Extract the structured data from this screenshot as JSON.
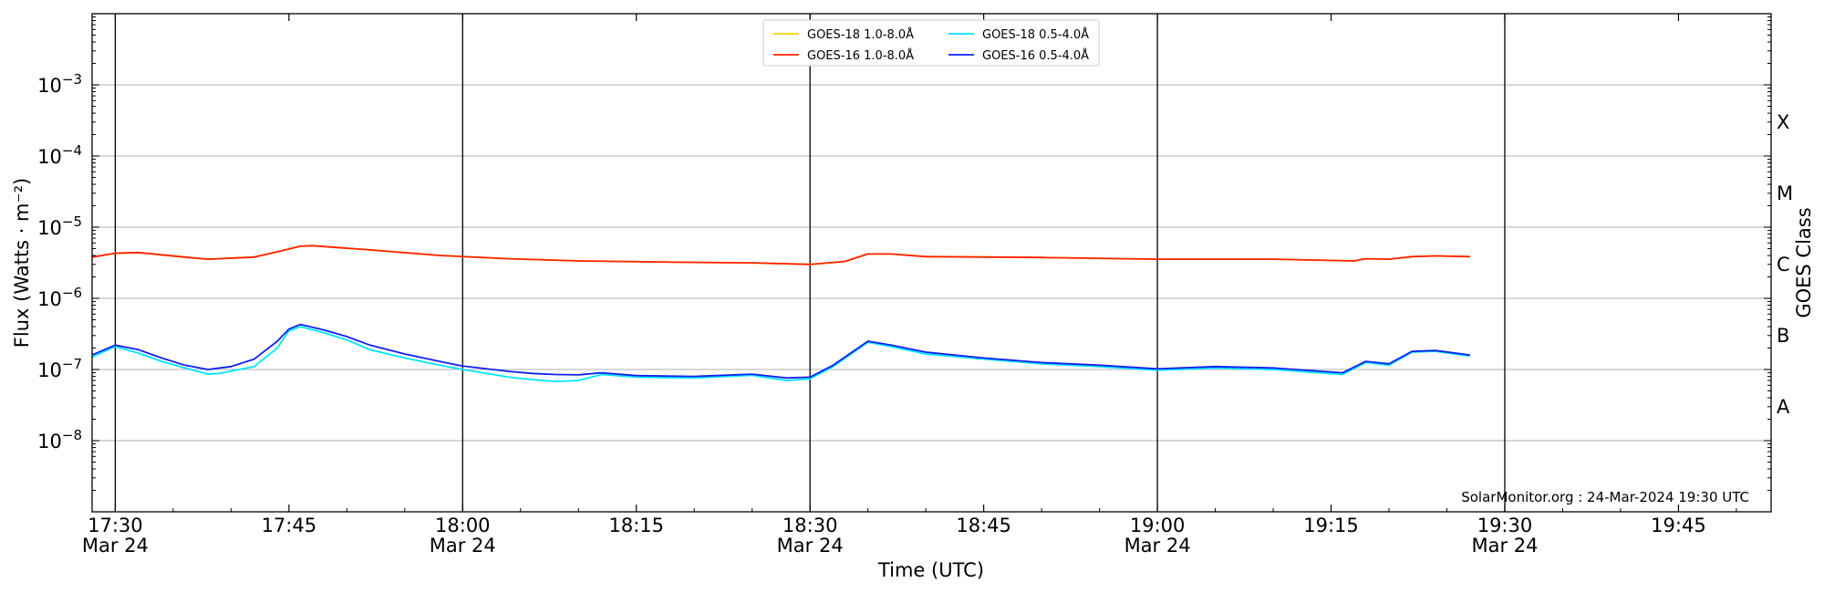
{
  "chart_data": {
    "type": "line",
    "ylabel": "Flux (Watts · m⁻²)",
    "xlabel": "Time (UTC)",
    "right_label": "GOES Class",
    "y_scale": "log",
    "ylim": [
      1e-09,
      0.01
    ],
    "xlim": [
      "17:28",
      "19:53"
    ],
    "grid": "horizontal at each decade",
    "legend_placement": "top-center",
    "annotation": "SolarMonitor.org : 24-Mar-2024 19:30 UTC",
    "y_ticks": [
      {
        "value": 1e-08,
        "base": "10",
        "exp": "−8"
      },
      {
        "value": 1e-07,
        "base": "10",
        "exp": "−7"
      },
      {
        "value": 1e-06,
        "base": "10",
        "exp": "−6"
      },
      {
        "value": 1e-05,
        "base": "10",
        "exp": "−5"
      },
      {
        "value": 0.0001,
        "base": "10",
        "exp": "−4"
      },
      {
        "value": 0.001,
        "base": "10",
        "exp": "−3"
      }
    ],
    "x_ticks": [
      {
        "time": "17:30",
        "label": "17:30",
        "sub": "Mar 24"
      },
      {
        "time": "17:45",
        "label": "17:45",
        "sub": ""
      },
      {
        "time": "18:00",
        "label": "18:00",
        "sub": "Mar 24"
      },
      {
        "time": "18:15",
        "label": "18:15",
        "sub": ""
      },
      {
        "time": "18:30",
        "label": "18:30",
        "sub": "Mar 24"
      },
      {
        "time": "18:45",
        "label": "18:45",
        "sub": ""
      },
      {
        "time": "19:00",
        "label": "19:00",
        "sub": "Mar 24"
      },
      {
        "time": "19:15",
        "label": "19:15",
        "sub": ""
      },
      {
        "time": "19:30",
        "label": "19:30",
        "sub": "Mar 24"
      },
      {
        "time": "19:45",
        "label": "19:45",
        "sub": ""
      }
    ],
    "vertical_lines": [
      "17:30",
      "18:00",
      "18:30",
      "19:00",
      "19:30"
    ],
    "goes_classes": [
      {
        "label": "A",
        "value": 3e-08
      },
      {
        "label": "B",
        "value": 3e-07
      },
      {
        "label": "C",
        "value": 3e-06
      },
      {
        "label": "M",
        "value": 3e-05
      },
      {
        "label": "X",
        "value": 0.0003
      }
    ],
    "series": [
      {
        "name": "GOES-18 1.0-8.0Å",
        "color": "#ffd000",
        "points": [
          [
            "17:28",
            3.8e-06
          ],
          [
            "17:30",
            4.3e-06
          ],
          [
            "17:32",
            4.4e-06
          ],
          [
            "17:36",
            3.8e-06
          ],
          [
            "17:38",
            3.55e-06
          ],
          [
            "17:42",
            3.8e-06
          ],
          [
            "17:44",
            4.5e-06
          ],
          [
            "17:46",
            5.4e-06
          ],
          [
            "17:47",
            5.5e-06
          ],
          [
            "17:52",
            4.8e-06
          ],
          [
            "17:58",
            4e-06
          ],
          [
            "18:04",
            3.6e-06
          ],
          [
            "18:10",
            3.35e-06
          ],
          [
            "18:20",
            3.2e-06
          ],
          [
            "18:25",
            3.15e-06
          ],
          [
            "18:30",
            3e-06
          ],
          [
            "18:33",
            3.3e-06
          ],
          [
            "18:35",
            4.2e-06
          ],
          [
            "18:37",
            4.2e-06
          ],
          [
            "18:40",
            3.85e-06
          ],
          [
            "18:50",
            3.75e-06
          ],
          [
            "19:00",
            3.55e-06
          ],
          [
            "19:10",
            3.55e-06
          ],
          [
            "19:17",
            3.35e-06
          ],
          [
            "19:18",
            3.6e-06
          ],
          [
            "19:20",
            3.55e-06
          ],
          [
            "19:22",
            3.85e-06
          ],
          [
            "19:24",
            3.95e-06
          ],
          [
            "19:27",
            3.85e-06
          ]
        ]
      },
      {
        "name": "GOES-16 1.0-8.0Å",
        "color": "#ff2200",
        "points": [
          [
            "17:28",
            3.8e-06
          ],
          [
            "17:30",
            4.3e-06
          ],
          [
            "17:32",
            4.4e-06
          ],
          [
            "17:36",
            3.8e-06
          ],
          [
            "17:38",
            3.55e-06
          ],
          [
            "17:42",
            3.8e-06
          ],
          [
            "17:44",
            4.5e-06
          ],
          [
            "17:46",
            5.4e-06
          ],
          [
            "17:47",
            5.5e-06
          ],
          [
            "17:52",
            4.8e-06
          ],
          [
            "17:58",
            4e-06
          ],
          [
            "18:04",
            3.6e-06
          ],
          [
            "18:10",
            3.35e-06
          ],
          [
            "18:20",
            3.2e-06
          ],
          [
            "18:25",
            3.15e-06
          ],
          [
            "18:30",
            3e-06
          ],
          [
            "18:33",
            3.3e-06
          ],
          [
            "18:35",
            4.2e-06
          ],
          [
            "18:37",
            4.2e-06
          ],
          [
            "18:40",
            3.85e-06
          ],
          [
            "18:50",
            3.75e-06
          ],
          [
            "19:00",
            3.55e-06
          ],
          [
            "19:10",
            3.55e-06
          ],
          [
            "19:17",
            3.35e-06
          ],
          [
            "19:18",
            3.6e-06
          ],
          [
            "19:20",
            3.55e-06
          ],
          [
            "19:22",
            3.85e-06
          ],
          [
            "19:24",
            3.95e-06
          ],
          [
            "19:27",
            3.85e-06
          ]
        ]
      },
      {
        "name": "GOES-18 0.5-4.0Å",
        "color": "#00e5ff",
        "points": [
          [
            "17:28",
            1.5e-07
          ],
          [
            "17:30",
            2.1e-07
          ],
          [
            "17:32",
            1.7e-07
          ],
          [
            "17:34",
            1.3e-07
          ],
          [
            "17:36",
            1.05e-07
          ],
          [
            "17:38",
            8.6e-08
          ],
          [
            "17:39",
            8.8e-08
          ],
          [
            "17:42",
            1.1e-07
          ],
          [
            "17:44",
            2e-07
          ],
          [
            "17:45",
            3.5e-07
          ],
          [
            "17:46",
            4e-07
          ],
          [
            "17:48",
            3.3e-07
          ],
          [
            "17:50",
            2.6e-07
          ],
          [
            "17:52",
            1.9e-07
          ],
          [
            "17:55",
            1.45e-07
          ],
          [
            "17:58",
            1.15e-07
          ],
          [
            "18:00",
            1e-07
          ],
          [
            "18:04",
            7.8e-08
          ],
          [
            "18:06",
            7.2e-08
          ],
          [
            "18:08",
            6.8e-08
          ],
          [
            "18:10",
            7e-08
          ],
          [
            "18:12",
            8.5e-08
          ],
          [
            "18:15",
            7.8e-08
          ],
          [
            "18:20",
            7.6e-08
          ],
          [
            "18:25",
            8.3e-08
          ],
          [
            "18:28",
            7e-08
          ],
          [
            "18:30",
            7.4e-08
          ],
          [
            "18:32",
            1.1e-07
          ],
          [
            "18:35",
            2.4e-07
          ],
          [
            "18:37",
            2.1e-07
          ],
          [
            "18:40",
            1.65e-07
          ],
          [
            "18:45",
            1.4e-07
          ],
          [
            "18:50",
            1.2e-07
          ],
          [
            "18:55",
            1.1e-07
          ],
          [
            "19:00",
            9.8e-08
          ],
          [
            "19:05",
            1.05e-07
          ],
          [
            "19:10",
            1e-07
          ],
          [
            "19:16",
            8.5e-08
          ],
          [
            "19:18",
            1.25e-07
          ],
          [
            "19:20",
            1.15e-07
          ],
          [
            "19:22",
            1.75e-07
          ],
          [
            "19:24",
            1.8e-07
          ],
          [
            "19:27",
            1.55e-07
          ]
        ]
      },
      {
        "name": "GOES-16 0.5-4.0Å",
        "color": "#1020ee",
        "points": [
          [
            "17:28",
            1.6e-07
          ],
          [
            "17:30",
            2.2e-07
          ],
          [
            "17:32",
            1.9e-07
          ],
          [
            "17:34",
            1.45e-07
          ],
          [
            "17:36",
            1.15e-07
          ],
          [
            "17:38",
            1e-07
          ],
          [
            "17:40",
            1.1e-07
          ],
          [
            "17:42",
            1.4e-07
          ],
          [
            "17:44",
            2.5e-07
          ],
          [
            "17:45",
            3.7e-07
          ],
          [
            "17:46",
            4.3e-07
          ],
          [
            "17:48",
            3.6e-07
          ],
          [
            "17:50",
            2.9e-07
          ],
          [
            "17:52",
            2.2e-07
          ],
          [
            "17:55",
            1.65e-07
          ],
          [
            "17:58",
            1.3e-07
          ],
          [
            "18:00",
            1.12e-07
          ],
          [
            "18:04",
            9.4e-08
          ],
          [
            "18:06",
            8.8e-08
          ],
          [
            "18:08",
            8.5e-08
          ],
          [
            "18:10",
            8.4e-08
          ],
          [
            "18:12",
            9e-08
          ],
          [
            "18:15",
            8.2e-08
          ],
          [
            "18:20",
            8e-08
          ],
          [
            "18:25",
            8.6e-08
          ],
          [
            "18:28",
            7.6e-08
          ],
          [
            "18:30",
            7.8e-08
          ],
          [
            "18:32",
            1.15e-07
          ],
          [
            "18:35",
            2.5e-07
          ],
          [
            "18:37",
            2.2e-07
          ],
          [
            "18:40",
            1.75e-07
          ],
          [
            "18:45",
            1.45e-07
          ],
          [
            "18:50",
            1.25e-07
          ],
          [
            "18:55",
            1.15e-07
          ],
          [
            "19:00",
            1.02e-07
          ],
          [
            "19:05",
            1.1e-07
          ],
          [
            "19:10",
            1.05e-07
          ],
          [
            "19:16",
            9e-08
          ],
          [
            "19:18",
            1.3e-07
          ],
          [
            "19:20",
            1.2e-07
          ],
          [
            "19:22",
            1.8e-07
          ],
          [
            "19:24",
            1.85e-07
          ],
          [
            "19:27",
            1.6e-07
          ]
        ]
      }
    ],
    "legend": [
      {
        "name": "GOES-18 1.0-8.0Å",
        "color": "#ffd000"
      },
      {
        "name": "GOES-18 0.5-4.0Å",
        "color": "#00e5ff"
      },
      {
        "name": "GOES-16 1.0-8.0Å",
        "color": "#ff2200"
      },
      {
        "name": "GOES-16 0.5-4.0Å",
        "color": "#1020ee"
      }
    ]
  }
}
